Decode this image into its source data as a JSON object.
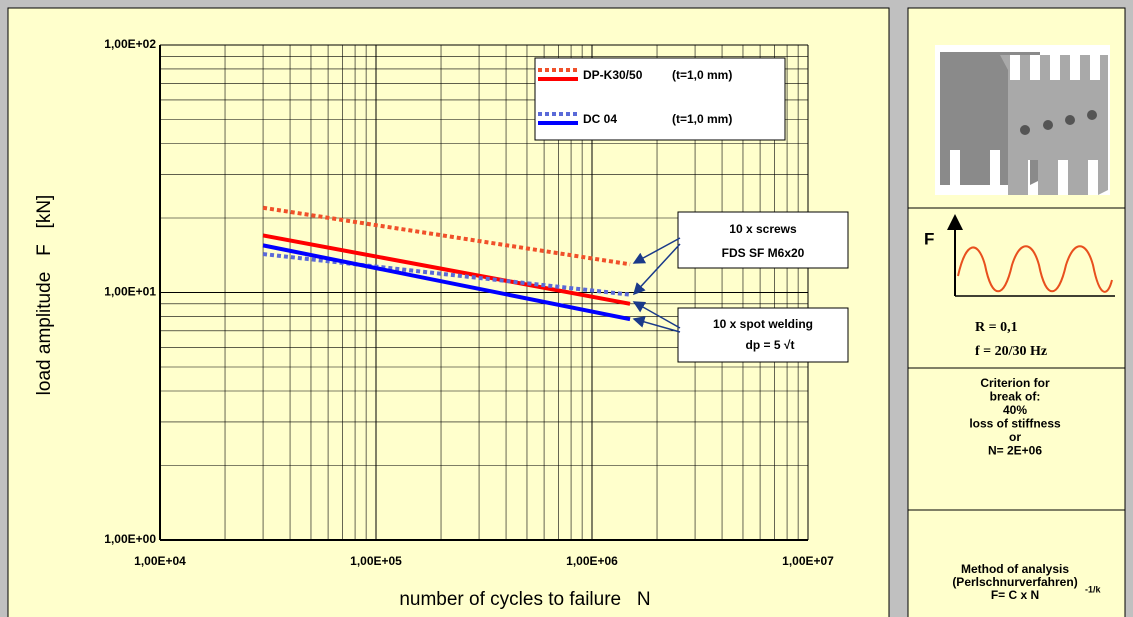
{
  "chart_data": {
    "type": "line",
    "log_x": true,
    "log_y": true,
    "grid": true,
    "xlabel": "number of cycles to failure   N",
    "ylabel": "load amplitude   F   [kN]",
    "x": [
      30000,
      1500000
    ],
    "xlim": [
      10000,
      10000000
    ],
    "ylim": [
      1,
      100
    ],
    "xticks": [
      {
        "value": 10000,
        "label": "1,00E+04"
      },
      {
        "value": 100000,
        "label": "1,00E+05"
      },
      {
        "value": 1000000,
        "label": "1,00E+06"
      },
      {
        "value": 10000000,
        "label": "1,00E+07"
      }
    ],
    "yticks": [
      {
        "value": 1,
        "label": "1,00E+00"
      },
      {
        "value": 10,
        "label": "1,00E+01"
      },
      {
        "value": 100,
        "label": "1,00E+02"
      }
    ],
    "xminor": [
      20000,
      30000,
      40000,
      50000,
      60000,
      70000,
      80000,
      90000,
      200000,
      300000,
      400000,
      500000,
      600000,
      700000,
      800000,
      900000,
      2000000,
      3000000,
      4000000,
      5000000,
      6000000,
      7000000,
      8000000,
      9000000
    ],
    "yminor": [
      2,
      3,
      4,
      5,
      6,
      7,
      8,
      9,
      20,
      30,
      40,
      50,
      60,
      70,
      80,
      90
    ],
    "series": [
      {
        "name": "DP-K30/50",
        "thickness": "(t=1,0 mm)",
        "lines": [
          {
            "style": "dotted",
            "color": "#f0502a",
            "values": [
              22,
              13
            ]
          },
          {
            "style": "solid",
            "color": "#ff0000",
            "values": [
              17,
              9
            ]
          }
        ]
      },
      {
        "name": "DC 04",
        "thickness": "(t=1,0 mm)",
        "lines": [
          {
            "style": "dotted",
            "color": "#5a6ad8",
            "values": [
              14.3,
              9.8
            ]
          },
          {
            "style": "solid",
            "color": "#0000ff",
            "values": [
              15.5,
              7.8
            ]
          }
        ]
      }
    ],
    "annotations": [
      {
        "lines": [
          "10 x screws",
          "FDS SF M6x20"
        ]
      },
      {
        "lines": [
          "10 x spot welding",
          "dp = 5 √t"
        ]
      }
    ]
  },
  "side_panel": {
    "force_label": "F",
    "ratio": "R = 0,1",
    "frequency": "f = 20/30 Hz",
    "criterion": [
      "Criterion for",
      "break of:",
      "40%",
      "loss of stiffness",
      "or",
      "N= 2E+06"
    ],
    "method": [
      "Method of analysis",
      "(Perlschnurverfahren)",
      "F= C x N"
    ],
    "exponent": "-1/k"
  }
}
